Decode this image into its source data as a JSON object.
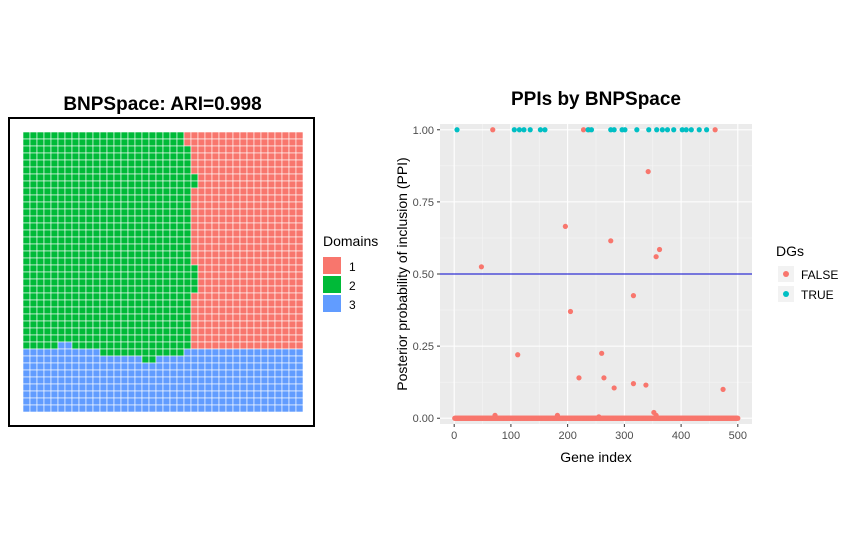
{
  "chart_data": [
    {
      "type": "heatmap",
      "title": "BNPSpace: ARI=0.998",
      "grid": {
        "cols": 40,
        "rows": 40
      },
      "legend": {
        "title": "Domains",
        "placement": "right",
        "entries": [
          {
            "label": "1",
            "color": "#F8766D"
          },
          {
            "label": "2",
            "color": "#00BA38"
          },
          {
            "label": "3",
            "color": "#619CFF"
          }
        ]
      },
      "domain1_start_col_by_row": [
        23,
        23,
        24,
        24,
        24,
        24,
        25,
        25,
        24,
        24,
        24,
        24,
        24,
        24,
        24,
        24,
        24,
        24,
        24,
        25,
        25,
        25,
        25,
        24,
        24,
        24,
        24,
        24,
        24,
        24,
        24,
        24,
        24,
        24,
        24,
        24,
        24,
        24,
        24,
        24
      ],
      "domain3_top_row_by_col": [
        31,
        31,
        31,
        31,
        31,
        30,
        30,
        31,
        31,
        31,
        31,
        32,
        32,
        32,
        32,
        32,
        32,
        33,
        33,
        32,
        32,
        32,
        32,
        31,
        31,
        31,
        31,
        31,
        31,
        31,
        31,
        31,
        31,
        31,
        31,
        31,
        31,
        31,
        31,
        31
      ]
    },
    {
      "type": "scatter",
      "title": "PPIs by BNPSpace",
      "xlabel": "Gene index",
      "ylabel": "Posterior probability of inclusion (PPI)",
      "xlim": [
        -25,
        525
      ],
      "ylim": [
        -0.02,
        1.02
      ],
      "xticks": [
        0,
        100,
        200,
        300,
        400,
        500
      ],
      "yticks": [
        0.0,
        0.25,
        0.5,
        0.75,
        1.0
      ],
      "ytick_labels": [
        "0.00",
        "0.25",
        "0.50",
        "0.75",
        "1.00"
      ],
      "hline": {
        "y": 0.5,
        "color": "#0000CD"
      },
      "legend": {
        "title": "DGs",
        "placement": "right"
      },
      "n_genes": 500,
      "series": [
        {
          "name": "FALSE",
          "color": "#F8766D",
          "points": [
            [
              68,
              1.0
            ],
            [
              228,
              1.0
            ],
            [
              238,
              1.0
            ],
            [
              460,
              1.0
            ],
            [
              342,
              0.855
            ],
            [
              196,
              0.665
            ],
            [
              276,
              0.615
            ],
            [
              362,
              0.585
            ],
            [
              356,
              0.56
            ],
            [
              48,
              0.525
            ],
            [
              316,
              0.425
            ],
            [
              205,
              0.37
            ],
            [
              112,
              0.22
            ],
            [
              260,
              0.225
            ],
            [
              220,
              0.14
            ],
            [
              264,
              0.14
            ],
            [
              316,
              0.12
            ],
            [
              282,
              0.105
            ],
            [
              338,
              0.115
            ],
            [
              474,
              0.1
            ],
            [
              72,
              0.01
            ],
            [
              182,
              0.01
            ],
            [
              255,
              0.005
            ],
            [
              352,
              0.02
            ],
            [
              356,
              0.01
            ]
          ]
        },
        {
          "name": "TRUE",
          "color": "#00BFC4",
          "points": [
            [
              5,
              1.0
            ],
            [
              106,
              1.0
            ],
            [
              115,
              1.0
            ],
            [
              123,
              1.0
            ],
            [
              134,
              1.0
            ],
            [
              152,
              1.0
            ],
            [
              160,
              1.0
            ],
            [
              236,
              1.0
            ],
            [
              242,
              1.0
            ],
            [
              276,
              1.0
            ],
            [
              282,
              1.0
            ],
            [
              296,
              1.0
            ],
            [
              301,
              1.0
            ],
            [
              322,
              1.0
            ],
            [
              343,
              1.0
            ],
            [
              357,
              1.0
            ],
            [
              367,
              1.0
            ],
            [
              376,
              1.0
            ],
            [
              387,
              1.0
            ],
            [
              402,
              1.0
            ],
            [
              409,
              1.0
            ],
            [
              418,
              1.0
            ],
            [
              432,
              1.0
            ],
            [
              445,
              1.0
            ]
          ]
        }
      ]
    }
  ]
}
